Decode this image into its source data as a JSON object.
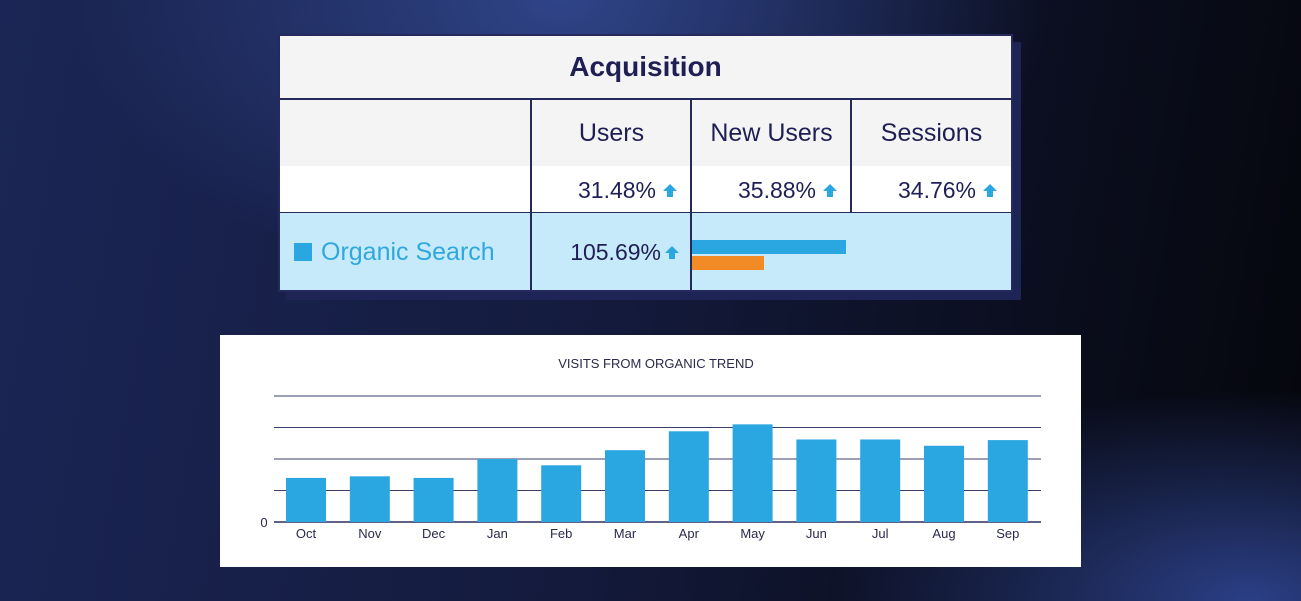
{
  "acquisition": {
    "title": "Acquisition",
    "columns": [
      "Users",
      "New Users",
      "Sessions"
    ],
    "totals": [
      "31.48%",
      "35.88%",
      "34.76%"
    ],
    "organic": {
      "label": "Organic Search",
      "users_change": "105.69%",
      "bar_colors": {
        "primary": "#2aa7e0",
        "secondary": "#f28a26"
      },
      "bar_values": {
        "primary": 1.0,
        "secondary": 0.47
      }
    },
    "colors": {
      "border": "#26295c",
      "text": "#1f1f55",
      "accent": "#2aa7e0",
      "row_highlight": "#c7eafb"
    }
  },
  "chart_data": {
    "type": "bar",
    "title": "VISITS FROM ORGANIC TREND",
    "categories": [
      "Oct",
      "Nov",
      "Dec",
      "Jan",
      "Feb",
      "Mar",
      "Apr",
      "May",
      "Jun",
      "Jul",
      "Aug",
      "Sep"
    ],
    "values": [
      1.4,
      1.45,
      1.4,
      2.0,
      1.8,
      2.28,
      2.88,
      3.1,
      2.62,
      2.62,
      2.42,
      2.6
    ],
    "ylim": [
      0,
      4
    ],
    "ytick_labels": [
      "0"
    ],
    "gridlines": [
      1,
      2,
      3,
      4
    ],
    "grid": true,
    "color": "#2aa7e0"
  }
}
